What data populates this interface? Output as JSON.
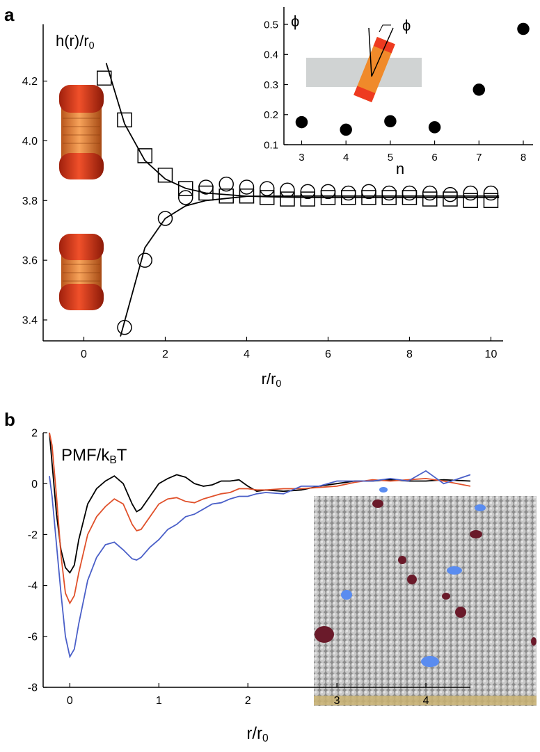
{
  "chart_data": [
    {
      "type": "line",
      "panel_label": "a",
      "ylabel": [
        "h(r)/r",
        "0"
      ],
      "xlabel": [
        "r/r",
        "0"
      ],
      "xlim": [
        -1,
        10.3
      ],
      "ylim": [
        3.33,
        4.39
      ],
      "xticks": [
        0,
        2,
        4,
        6,
        8,
        10
      ],
      "yticks": [
        3.4,
        3.6,
        3.8,
        {
          "value": 4,
          "label": "4.0"
        },
        4.2
      ],
      "series": [
        {
          "color": "#000000",
          "marker": "square",
          "marker_fill": "none",
          "line": false,
          "x": [
            0.5,
            1,
            1.5,
            2,
            2.5,
            3,
            3.5,
            4,
            4.5,
            5,
            5.5,
            6,
            6.5,
            7,
            7.5,
            8,
            8.5,
            9,
            9.5,
            10
          ],
          "values": [
            4.21,
            4.07,
            3.95,
            3.885,
            3.84,
            3.825,
            3.815,
            3.815,
            3.81,
            3.805,
            3.805,
            3.81,
            3.81,
            3.81,
            3.81,
            3.81,
            3.805,
            3.805,
            3.8,
            3.8
          ]
        },
        {
          "color": "#000000",
          "marker": "circle",
          "marker_fill": "none",
          "line": false,
          "x": [
            1,
            1.5,
            2,
            2.5,
            3,
            3.5,
            4,
            4.5,
            5,
            5.5,
            6,
            6.5,
            7,
            7.5,
            8,
            8.5,
            9,
            9.5,
            10
          ],
          "values": [
            3.375,
            3.6,
            3.74,
            3.81,
            3.845,
            3.855,
            3.845,
            3.84,
            3.835,
            3.83,
            3.83,
            3.825,
            3.83,
            3.825,
            3.825,
            3.825,
            3.82,
            3.825,
            3.825
          ]
        },
        {
          "color": "#000000",
          "marker": "none",
          "line": true,
          "x": [
            0.55,
            1,
            1.5,
            2,
            2.5,
            3,
            4,
            5,
            6,
            8,
            10.2
          ],
          "values": [
            4.26,
            4.057,
            3.934,
            3.872,
            3.841,
            3.825,
            3.8145,
            3.811,
            3.81,
            3.81,
            3.81
          ]
        },
        {
          "color": "#000000",
          "marker": "none",
          "line": true,
          "x": [
            0.9,
            1.5,
            2,
            2.5,
            3,
            4,
            5,
            6,
            8,
            10.2
          ],
          "values": [
            3.345,
            3.642,
            3.74,
            3.782,
            3.8,
            3.814,
            3.815,
            3.815,
            3.815,
            3.815
          ]
        }
      ]
    },
    {
      "type": "scatter",
      "ylabel": [
        "ϕ"
      ],
      "xlabel": [
        "n"
      ],
      "annotation": "ϕ",
      "xlim": [
        2.6,
        8.22
      ],
      "ylim": [
        0.1,
        0.558
      ],
      "xticks": [
        3,
        4,
        5,
        6,
        7,
        8
      ],
      "yticks": [
        0.1,
        0.2,
        0.3,
        0.4,
        0.5
      ],
      "series": [
        {
          "color": "#000000",
          "marker": "circle",
          "marker_fill": "#000000",
          "line": false,
          "x": [
            3,
            4,
            5,
            6,
            7,
            8
          ],
          "values": [
            0.175,
            0.15,
            0.178,
            0.158,
            0.283,
            0.485
          ]
        }
      ]
    },
    {
      "type": "line",
      "panel_label": "b",
      "ylabel": [
        "PMF/k",
        "B",
        "T"
      ],
      "xlabel": [
        "r/r",
        "0"
      ],
      "xlim": [
        -0.3,
        4.5
      ],
      "ylim": [
        -8,
        2
      ],
      "xticks": [
        0,
        1,
        2,
        3,
        4
      ],
      "yticks": [
        -8,
        -6,
        -4,
        -2,
        0,
        2
      ],
      "x": [
        -0.23,
        -0.2,
        -0.15,
        -0.1,
        -0.05,
        0,
        0.05,
        0.1,
        0.2,
        0.3,
        0.4,
        0.5,
        0.6,
        0.7,
        0.75,
        0.8,
        0.9,
        1.0,
        1.1,
        1.2,
        1.3,
        1.4,
        1.5,
        1.6,
        1.7,
        1.8,
        1.9,
        2.0,
        2.1,
        2.2,
        2.4,
        2.6,
        2.8,
        3.0,
        3.2,
        3.4,
        3.6,
        3.8,
        4.0,
        4.2,
        4.5
      ],
      "series": [
        {
          "color": "#000000",
          "marker": "none",
          "line": true,
          "values": [
            2,
            0.8,
            -1.2,
            -2.6,
            -3.3,
            -3.5,
            -3.2,
            -2.2,
            -0.8,
            -0.2,
            0.1,
            0.3,
            0.0,
            -0.8,
            -1.1,
            -1.0,
            -0.5,
            0.0,
            0.2,
            0.35,
            0.25,
            0.0,
            -0.1,
            -0.05,
            0.1,
            0.1,
            0.15,
            -0.1,
            -0.3,
            -0.25,
            -0.3,
            -0.25,
            -0.1,
            0.0,
            0.1,
            0.1,
            0.15,
            0.1,
            0.1,
            0.15,
            0.1
          ]
        },
        {
          "color": "#e0502a",
          "marker": "none",
          "line": true,
          "values": [
            2,
            1.5,
            -0.5,
            -2.8,
            -4.3,
            -4.7,
            -4.4,
            -3.5,
            -2.0,
            -1.3,
            -0.9,
            -0.6,
            -0.8,
            -1.6,
            -1.85,
            -1.8,
            -1.3,
            -0.8,
            -0.6,
            -0.55,
            -0.7,
            -0.75,
            -0.6,
            -0.5,
            -0.4,
            -0.35,
            -0.2,
            -0.2,
            -0.25,
            -0.25,
            -0.2,
            -0.2,
            -0.15,
            -0.1,
            0.05,
            0.15,
            0.1,
            0.15,
            0.2,
            0.1,
            -0.1
          ]
        },
        {
          "color": "#4a5fc8",
          "marker": "none",
          "line": true,
          "values": [
            0.3,
            -0.5,
            -2.4,
            -4.3,
            -6.0,
            -6.8,
            -6.5,
            -5.5,
            -3.8,
            -2.9,
            -2.4,
            -2.3,
            -2.6,
            -2.95,
            -3.0,
            -2.9,
            -2.5,
            -2.2,
            -1.8,
            -1.6,
            -1.3,
            -1.2,
            -1.0,
            -0.8,
            -0.75,
            -0.6,
            -0.5,
            -0.5,
            -0.4,
            -0.35,
            -0.4,
            -0.1,
            -0.1,
            0.1,
            0.1,
            0.1,
            0.2,
            0.1,
            0.5,
            0.0,
            0.35
          ]
        }
      ]
    }
  ]
}
